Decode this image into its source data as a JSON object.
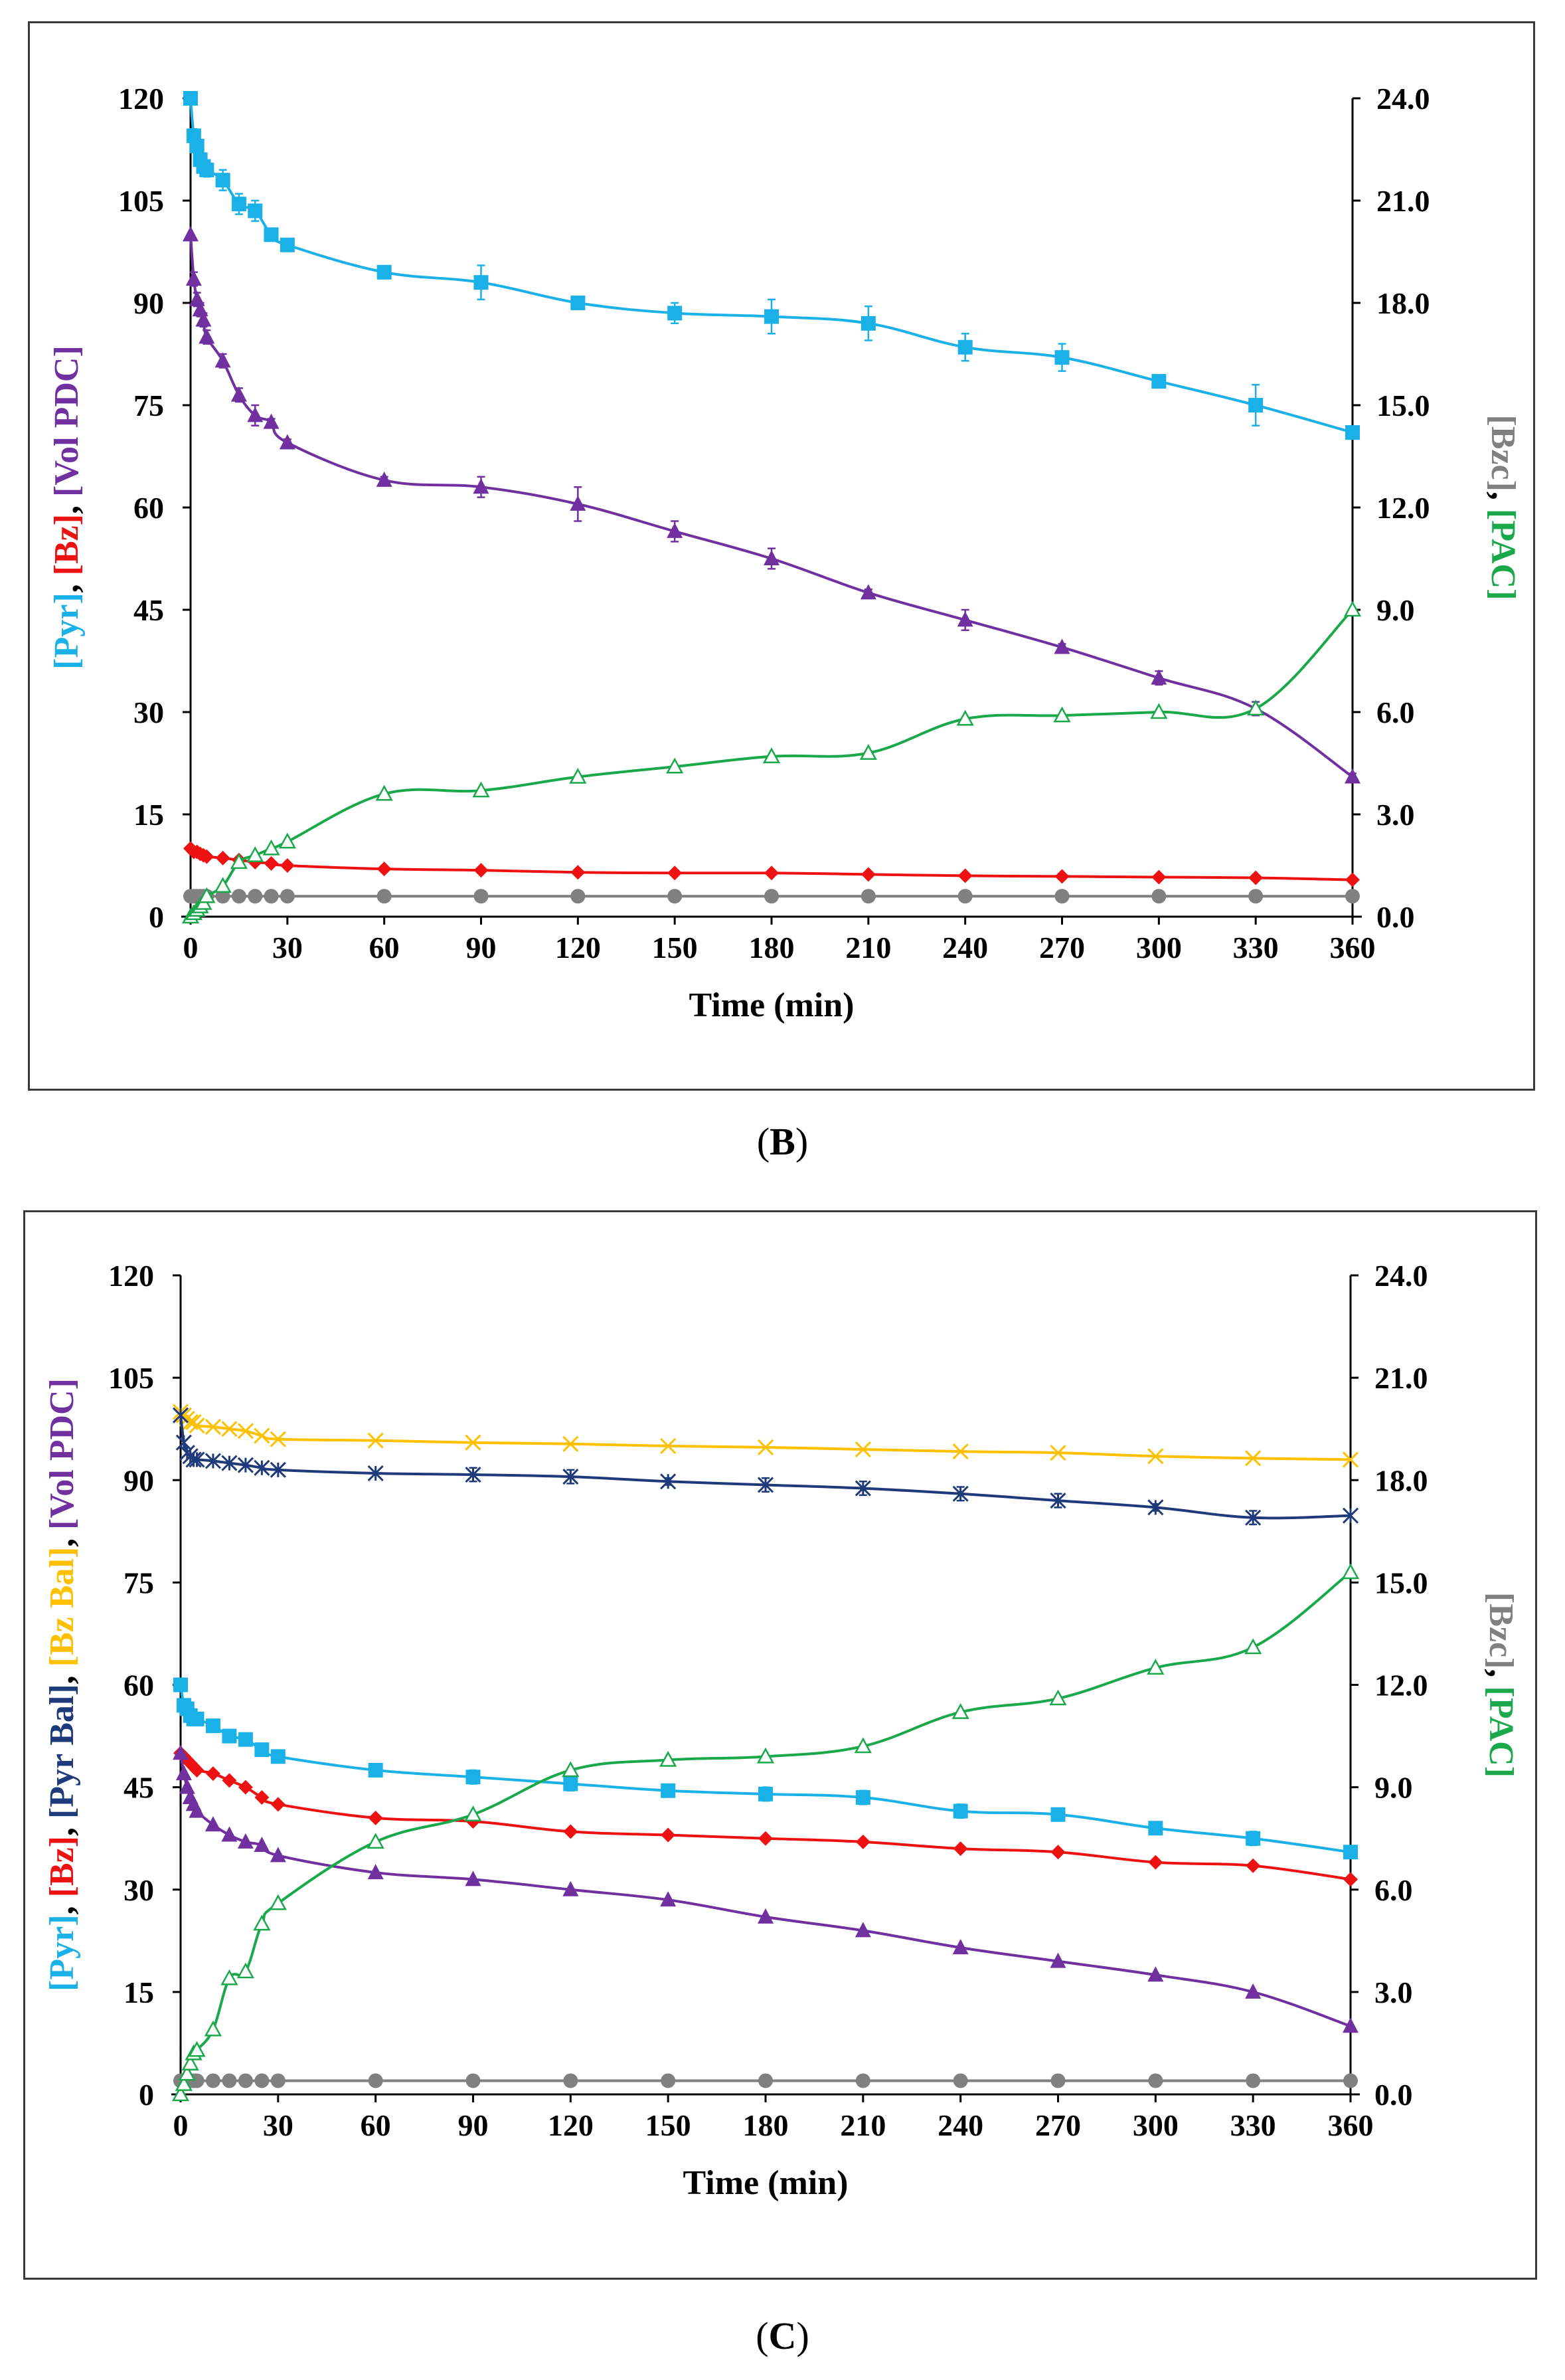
{
  "captions": {
    "b": {
      "open": "(",
      "letter": "B",
      "close": ")"
    },
    "c": {
      "open": "(",
      "letter": "C",
      "close": ")"
    }
  },
  "colors": {
    "pyr": "#1ab0e8",
    "bz": "#ee1111",
    "vol": "#7030a0",
    "bzc": "#808080",
    "pac": "#19a84a",
    "pyrbal": "#1f3a7a",
    "bzbal": "#ffc000",
    "black": "#000000"
  },
  "chart_data": [
    {
      "id": "B",
      "type": "line",
      "xlabel": "Time (min)",
      "ylabel_left": [
        {
          "text": "[Pyr]",
          "color": "pyr"
        },
        {
          "text": ", ",
          "color": "black"
        },
        {
          "text": "[Bz]",
          "color": "bz"
        },
        {
          "text": ", ",
          "color": "black"
        },
        {
          "text": "[Vol PDC]",
          "color": "vol"
        }
      ],
      "ylabel_right": [
        {
          "text": "[Bzc]",
          "color": "bzc"
        },
        {
          "text": ", ",
          "color": "black"
        },
        {
          "text": "[PAC]",
          "color": "pac"
        }
      ],
      "xlim": [
        0,
        360
      ],
      "ylim_left": [
        0,
        120
      ],
      "ylim_right": [
        0,
        24
      ],
      "xticks": [
        "0",
        "30",
        "60",
        "90",
        "120",
        "150",
        "180",
        "210",
        "240",
        "270",
        "300",
        "330",
        "360"
      ],
      "yticks_left": [
        "0",
        "15",
        "30",
        "45",
        "60",
        "75",
        "90",
        "105",
        "120"
      ],
      "yticks_right": [
        "0.0",
        "3.0",
        "6.0",
        "9.0",
        "12.0",
        "15.0",
        "18.0",
        "21.0",
        "24.0"
      ],
      "series": [
        {
          "name": "[Pyr]",
          "color": "pyr",
          "marker": "square",
          "axis": "left",
          "x": [
            0,
            1,
            2,
            3,
            4,
            5,
            10,
            15,
            20,
            25,
            30,
            60,
            90,
            120,
            150,
            180,
            210,
            240,
            270,
            300,
            330,
            360
          ],
          "y": [
            120,
            114.5,
            113,
            111,
            110,
            109.5,
            108,
            104.5,
            103.5,
            100,
            98.5,
            94.5,
            93,
            90,
            88.5,
            88,
            87,
            83.5,
            82,
            78.5,
            75,
            71
          ],
          "err": [
            0,
            1,
            1,
            1,
            1,
            1,
            1.5,
            1.5,
            1.5,
            0.5,
            0.5,
            0.5,
            2.5,
            0.5,
            1.5,
            2.5,
            2.5,
            2,
            2,
            0.5,
            3,
            0.5
          ]
        },
        {
          "name": "[Vol PDC]",
          "color": "vol",
          "marker": "triangle",
          "axis": "left",
          "x": [
            0,
            1,
            2,
            3,
            4,
            5,
            10,
            15,
            20,
            25,
            30,
            60,
            90,
            120,
            150,
            180,
            210,
            240,
            270,
            300,
            330,
            360
          ],
          "y": [
            100,
            93.5,
            90.5,
            89,
            87.5,
            85,
            81.5,
            76.5,
            73.5,
            72.5,
            69.5,
            64,
            63,
            60.5,
            56.5,
            52.5,
            47.5,
            43.5,
            39.5,
            35,
            30.5,
            20.5
          ],
          "err": [
            0,
            1,
            1,
            1,
            1,
            1,
            1,
            1,
            1.5,
            0.5,
            0.5,
            0.5,
            1.5,
            2.5,
            1.5,
            1.5,
            0.5,
            1.5,
            0.5,
            1,
            1,
            0.5
          ]
        },
        {
          "name": "[Bz]",
          "color": "bz",
          "marker": "diamond",
          "axis": "left",
          "x": [
            0,
            1,
            2,
            3,
            4,
            5,
            10,
            15,
            20,
            25,
            30,
            60,
            90,
            120,
            150,
            180,
            210,
            240,
            270,
            300,
            330,
            360
          ],
          "y": [
            10,
            9.5,
            9.5,
            9.2,
            9,
            8.8,
            8.6,
            8.3,
            8,
            7.8,
            7.5,
            7,
            6.8,
            6.5,
            6.4,
            6.4,
            6.2,
            6,
            5.9,
            5.8,
            5.7,
            5.4
          ],
          "err": []
        },
        {
          "name": "[Bzc]",
          "color": "bzc",
          "marker": "circle",
          "axis": "right",
          "x": [
            0,
            1,
            2,
            3,
            4,
            5,
            10,
            15,
            20,
            25,
            30,
            60,
            90,
            120,
            150,
            180,
            210,
            240,
            270,
            300,
            330,
            360
          ],
          "y": [
            0.6,
            0.6,
            0.6,
            0.6,
            0.6,
            0.6,
            0.6,
            0.6,
            0.6,
            0.6,
            0.6,
            0.6,
            0.6,
            0.6,
            0.6,
            0.6,
            0.6,
            0.6,
            0.6,
            0.6,
            0.6,
            0.6
          ],
          "err": []
        },
        {
          "name": "[PAC]",
          "color": "pac",
          "marker": "open-triangle",
          "axis": "right",
          "x": [
            0,
            1,
            2,
            3,
            4,
            5,
            10,
            15,
            20,
            25,
            30,
            60,
            90,
            120,
            150,
            180,
            210,
            240,
            270,
            300,
            330,
            360
          ],
          "y": [
            0,
            0.1,
            0.2,
            0.3,
            0.4,
            0.6,
            0.9,
            1.6,
            1.8,
            2.0,
            2.2,
            3.6,
            3.7,
            4.1,
            4.4,
            4.7,
            4.8,
            5.8,
            5.9,
            6.0,
            6.1,
            9.0
          ],
          "err": []
        }
      ]
    },
    {
      "id": "C",
      "type": "line",
      "xlabel": "Time (min)",
      "ylabel_left": [
        {
          "text": "[Pyr]",
          "color": "pyr"
        },
        {
          "text": ", ",
          "color": "black"
        },
        {
          "text": "[Bz]",
          "color": "bz"
        },
        {
          "text": ", ",
          "color": "black"
        },
        {
          "text": "[Pyr Bal]",
          "color": "pyrbal"
        },
        {
          "text": ", ",
          "color": "black"
        },
        {
          "text": "[Bz Bal]",
          "color": "bzbal"
        },
        {
          "text": ", ",
          "color": "black"
        },
        {
          "text": "[Vol PDC]",
          "color": "vol"
        }
      ],
      "ylabel_right": [
        {
          "text": "[Bzc]",
          "color": "bzc"
        },
        {
          "text": ", ",
          "color": "black"
        },
        {
          "text": "[PAC]",
          "color": "pac"
        }
      ],
      "xlim": [
        0,
        360
      ],
      "ylim_left": [
        0,
        120
      ],
      "ylim_right": [
        0,
        24
      ],
      "xticks": [
        "0",
        "30",
        "60",
        "90",
        "120",
        "150",
        "180",
        "210",
        "240",
        "270",
        "300",
        "330",
        "360"
      ],
      "yticks_left": [
        "0",
        "15",
        "30",
        "45",
        "60",
        "75",
        "90",
        "105",
        "120"
      ],
      "yticks_right": [
        "0.0",
        "3.0",
        "6.0",
        "9.0",
        "12.0",
        "15.0",
        "18.0",
        "21.0",
        "24.0"
      ],
      "series": [
        {
          "name": "[Bz Bal]",
          "color": "bzbal",
          "marker": "x",
          "axis": "left",
          "x": [
            0,
            1,
            2,
            3,
            4,
            5,
            10,
            15,
            20,
            25,
            30,
            60,
            90,
            120,
            150,
            180,
            210,
            240,
            270,
            300,
            330,
            360
          ],
          "y": [
            100,
            99.5,
            99,
            98.5,
            98.5,
            98,
            97.8,
            97.5,
            97.2,
            96.5,
            96,
            95.8,
            95.5,
            95.3,
            95,
            94.8,
            94.5,
            94.2,
            94,
            93.5,
            93.2,
            93
          ],
          "err": []
        },
        {
          "name": "[Pyr Bal]",
          "color": "pyrbal",
          "marker": "star",
          "axis": "left",
          "x": [
            0,
            1,
            2,
            3,
            4,
            5,
            10,
            15,
            20,
            25,
            30,
            60,
            90,
            120,
            150,
            180,
            210,
            240,
            270,
            300,
            330,
            360
          ],
          "y": [
            99.5,
            95.5,
            94,
            93.5,
            93,
            93,
            92.8,
            92.5,
            92.2,
            91.8,
            91.5,
            91,
            90.8,
            90.5,
            89.8,
            89.3,
            88.8,
            88,
            87,
            86,
            84.5,
            84.8
          ],
          "err": [
            0,
            0,
            0,
            0,
            0,
            0,
            0,
            0,
            0,
            0,
            0,
            0,
            1,
            1,
            0.5,
            1,
            1,
            1,
            1,
            0.5,
            1,
            0
          ]
        },
        {
          "name": "[Pyr]",
          "color": "pyr",
          "marker": "square",
          "axis": "left",
          "x": [
            0,
            1,
            2,
            3,
            4,
            5,
            10,
            15,
            20,
            25,
            30,
            60,
            90,
            120,
            150,
            180,
            210,
            240,
            270,
            300,
            330,
            360
          ],
          "y": [
            60,
            57,
            56.5,
            55.5,
            55,
            55,
            54,
            52.5,
            52,
            50.5,
            49.5,
            47.5,
            46.5,
            45.5,
            44.5,
            44,
            43.5,
            41.5,
            41,
            39,
            37.5,
            35.5
          ],
          "err": [
            0,
            0,
            0,
            0,
            0,
            0,
            0,
            0,
            0,
            0,
            0,
            0,
            1,
            1,
            0.5,
            1,
            1,
            1,
            0.5,
            0.5,
            1,
            0.5
          ]
        },
        {
          "name": "[Bz]",
          "color": "bz",
          "marker": "diamond",
          "axis": "left",
          "x": [
            0,
            1,
            2,
            3,
            4,
            5,
            10,
            15,
            20,
            25,
            30,
            60,
            90,
            120,
            150,
            180,
            210,
            240,
            270,
            300,
            330,
            360
          ],
          "y": [
            50,
            49.5,
            49,
            48.5,
            48,
            47.5,
            47,
            46,
            45,
            43.5,
            42.5,
            40.5,
            40,
            38.5,
            38,
            37.5,
            37,
            36,
            35.5,
            34,
            33.5,
            31.5
          ],
          "err": []
        },
        {
          "name": "[Vol PDC]",
          "color": "vol",
          "marker": "triangle",
          "axis": "left",
          "x": [
            0,
            1,
            2,
            3,
            4,
            5,
            10,
            15,
            20,
            25,
            30,
            60,
            90,
            120,
            150,
            180,
            210,
            240,
            270,
            300,
            330,
            360
          ],
          "y": [
            50,
            47,
            45,
            43.5,
            42.5,
            41.5,
            39.5,
            38,
            37,
            36.5,
            35,
            32.5,
            31.5,
            30,
            28.5,
            26,
            24,
            21.5,
            19.5,
            17.5,
            15,
            10
          ],
          "err": []
        },
        {
          "name": "[Bzc]",
          "color": "bzc",
          "marker": "circle",
          "axis": "right",
          "x": [
            0,
            1,
            2,
            3,
            4,
            5,
            10,
            15,
            20,
            25,
            30,
            60,
            90,
            120,
            150,
            180,
            210,
            240,
            270,
            300,
            330,
            360
          ],
          "y": [
            0.4,
            0.4,
            0.4,
            0.4,
            0.4,
            0.4,
            0.4,
            0.4,
            0.4,
            0.4,
            0.4,
            0.4,
            0.4,
            0.4,
            0.4,
            0.4,
            0.4,
            0.4,
            0.4,
            0.4,
            0.4,
            0.4
          ],
          "err": []
        },
        {
          "name": "[PAC]",
          "color": "pac",
          "marker": "open-triangle",
          "axis": "right",
          "x": [
            0,
            1,
            2,
            3,
            4,
            5,
            10,
            15,
            20,
            25,
            30,
            60,
            90,
            120,
            150,
            180,
            210,
            240,
            270,
            300,
            330,
            360
          ],
          "y": [
            0,
            0.3,
            0.6,
            0.9,
            1.2,
            1.3,
            1.9,
            3.4,
            3.6,
            5.0,
            5.6,
            7.4,
            8.2,
            9.5,
            9.8,
            9.9,
            10.2,
            11.2,
            11.6,
            12.5,
            13.1,
            15.3
          ],
          "err": []
        }
      ]
    }
  ]
}
